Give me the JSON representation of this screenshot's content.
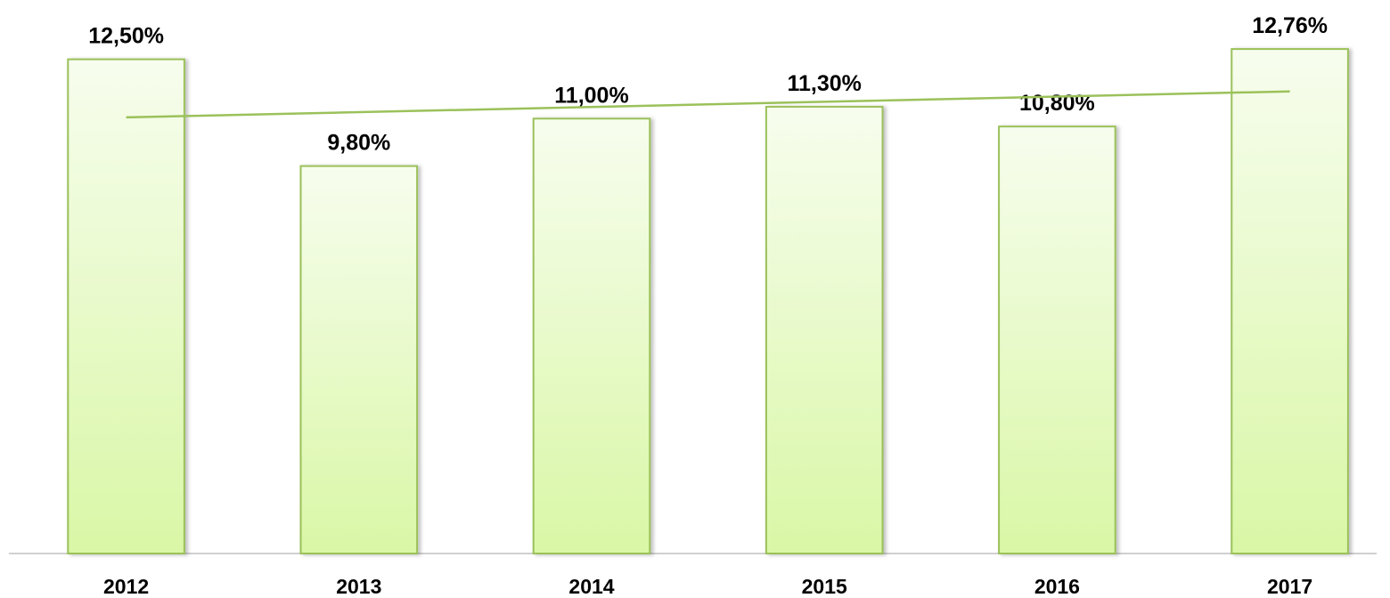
{
  "chart_data": {
    "type": "bar",
    "categories": [
      "2012",
      "2013",
      "2014",
      "2015",
      "2016",
      "2017"
    ],
    "values": [
      12.5,
      9.8,
      11.0,
      11.3,
      10.8,
      12.76
    ],
    "value_labels": [
      "12,50%",
      "9,80%",
      "11,00%",
      "11,30%",
      "10,80%",
      "12,76%"
    ],
    "color": "#d9f7a6",
    "ylim": [
      0,
      14
    ],
    "trendline": "linear",
    "grid": false
  }
}
